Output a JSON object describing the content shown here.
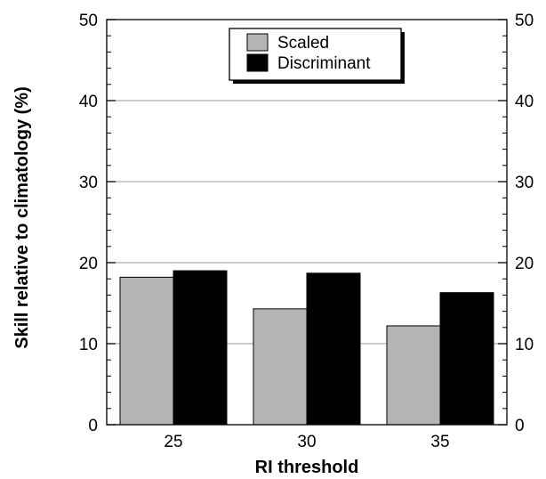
{
  "chart_data": {
    "type": "bar",
    "xlabel": "RI threshold",
    "ylabel": "Skill relative to climatology (%)",
    "categories": [
      "25",
      "30",
      "35"
    ],
    "series": [
      {
        "name": "Scaled",
        "values": [
          18.2,
          14.3,
          12.2
        ],
        "color": "#b4b4b4"
      },
      {
        "name": "Discriminant",
        "values": [
          19.0,
          18.7,
          16.3
        ],
        "color": "#000000"
      }
    ],
    "ylim": [
      0,
      50
    ],
    "yticks": [
      "0",
      "10",
      "20",
      "30",
      "40",
      "50"
    ],
    "right_yticks": [
      "0",
      "10",
      "20",
      "30",
      "40",
      "50"
    ],
    "grid": true,
    "legend_position": "top-center"
  }
}
